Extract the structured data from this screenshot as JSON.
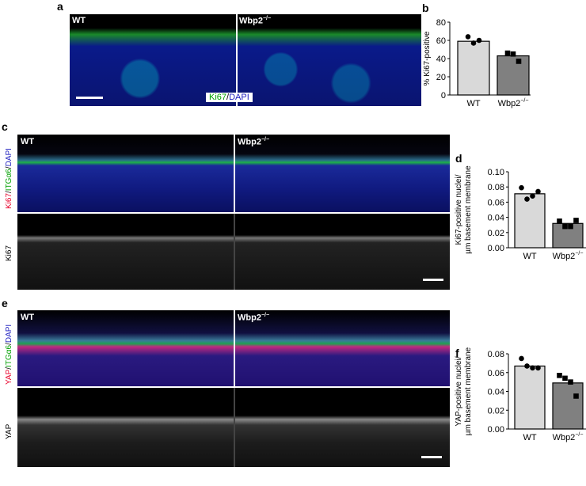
{
  "panels": {
    "a": {
      "label": "a",
      "wt": "WT",
      "ko": "Wbp2",
      "ko_sup": "−/−",
      "stain_green": "Ki67",
      "stain_sep": "/",
      "stain_blue": "DAPI"
    },
    "c": {
      "label": "c",
      "wt": "WT",
      "ko": "Wbp2",
      "ko_sup": "−/−",
      "side_top_red": "Ki67",
      "side_top_green": "ITGα6",
      "side_top_blue": "DAPI",
      "side_bottom": "Ki67"
    },
    "e": {
      "label": "e",
      "wt": "WT",
      "ko": "Wbp2",
      "ko_sup": "−/−",
      "side_top_red": "YAP",
      "side_top_green": "ITGα6",
      "side_top_blue": "DAPI",
      "side_bottom": "YAP"
    }
  },
  "colors": {
    "wt_bar": "#d9d9d9",
    "ko_bar": "#808080",
    "red": "#e8002a",
    "green": "#00a000",
    "blue": "#2020c0"
  },
  "chart_data": [
    {
      "panel": "b",
      "type": "bar",
      "ylabel": "% Ki67-positive",
      "ylim": [
        0,
        80
      ],
      "yticks": [
        "0",
        "20",
        "40",
        "60",
        "80"
      ],
      "categories": [
        "WT",
        "Wbp2−/−"
      ],
      "values": [
        59,
        43
      ],
      "points": [
        [
          64,
          57,
          60
        ],
        [
          46,
          45,
          37
        ]
      ],
      "markers": [
        "circle",
        "square"
      ]
    },
    {
      "panel": "d",
      "type": "bar",
      "ylabel": [
        "Ki67-positive nuclei/",
        "µm basement membrane"
      ],
      "ylim": [
        0,
        0.1
      ],
      "yticks": [
        "0.00",
        "0.02",
        "0.04",
        "0.06",
        "0.08",
        "0.10"
      ],
      "categories": [
        "WT",
        "Wbp2−/−"
      ],
      "values": [
        0.071,
        0.032
      ],
      "points": [
        [
          0.079,
          0.064,
          0.068,
          0.074
        ],
        [
          0.035,
          0.028,
          0.028,
          0.036
        ]
      ],
      "markers": [
        "circle",
        "square"
      ]
    },
    {
      "panel": "f",
      "type": "bar",
      "ylabel": [
        "YAP-positive nuclei/",
        "µm basement membrane"
      ],
      "ylim": [
        0,
        0.08
      ],
      "yticks": [
        "0.00",
        "0.02",
        "0.04",
        "0.06",
        "0.08"
      ],
      "categories": [
        "WT",
        "Wbp2−/−"
      ],
      "values": [
        0.067,
        0.049
      ],
      "points": [
        [
          0.075,
          0.067,
          0.065,
          0.065
        ],
        [
          0.057,
          0.054,
          0.05,
          0.035
        ]
      ],
      "markers": [
        "circle",
        "square"
      ]
    }
  ]
}
